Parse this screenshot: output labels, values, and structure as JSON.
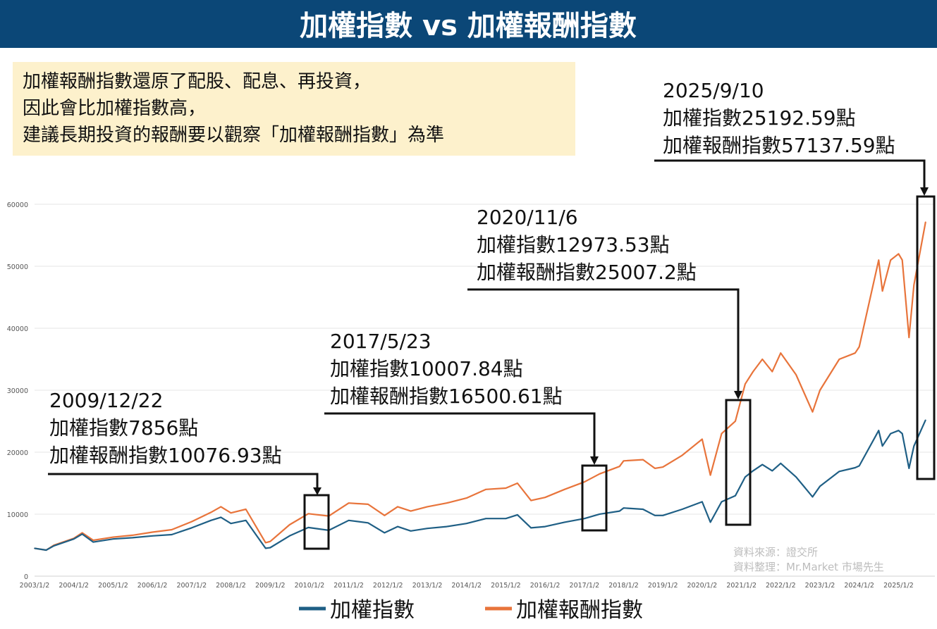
{
  "title": "加權指數 vs 加權報酬指數",
  "note": [
    "加權報酬指數還原了配股、配息、再投資，",
    "因此會比加權指數高，",
    "建議長期投資的報酬要以觀察「加權報酬指數」為準"
  ],
  "source": [
    "資料來源：證交所",
    "資料整理：Mr.Market 市場先生"
  ],
  "colors": {
    "title_bg": "#0b4777",
    "note_bg": "#fdf1cc",
    "taiex": "#1f5f85",
    "return_index": "#e8743b"
  },
  "annotations": [
    {
      "lines": [
        "2009/12/22",
        "加權指數7856點",
        "加權報酬指數10076.93點"
      ]
    },
    {
      "lines": [
        "2017/5/23",
        "加權指數10007.84點",
        "加權報酬指數16500.61點"
      ]
    },
    {
      "lines": [
        "2020/11/6",
        "加權指數12973.53點",
        "加權報酬指數25007.2點"
      ]
    },
    {
      "lines": [
        "2025/9/10",
        "加權指數25192.59點",
        "加權報酬指數57137.59點"
      ]
    }
  ],
  "chart_data": {
    "type": "line",
    "title": "加權指數 vs 加權報酬指數",
    "ylim": [
      0,
      60000
    ],
    "yticks": [
      0,
      10000,
      20000,
      30000,
      40000,
      50000,
      60000
    ],
    "xticks": [
      "2003/1/2",
      "2004/1/2",
      "2005/1/2",
      "2006/1/2",
      "2007/1/2",
      "2008/1/2",
      "2009/1/2",
      "2010/1/2",
      "2011/1/2",
      "2012/1/2",
      "2013/1/2",
      "2014/1/2",
      "2015/1/2",
      "2016/1/2",
      "2017/1/2",
      "2018/1/2",
      "2019/1/2",
      "2020/1/2",
      "2021/1/2",
      "2022/1/2",
      "2023/1/2",
      "2024/1/2",
      "2025/1/2"
    ],
    "grid": true,
    "legend_position": "bottom",
    "x": [
      "2003-01-02",
      "2003-04-20",
      "2003-07-01",
      "2004-01-02",
      "2004-03-20",
      "2004-07-01",
      "2005-01-02",
      "2005-07-01",
      "2006-01-02",
      "2006-07-01",
      "2007-01-02",
      "2007-07-01",
      "2007-10-01",
      "2008-01-02",
      "2008-05-20",
      "2008-11-20",
      "2009-01-02",
      "2009-07-01",
      "2009-12-22",
      "2010-07-01",
      "2011-01-02",
      "2011-07-01",
      "2011-12-01",
      "2012-04-01",
      "2012-08-01",
      "2013-01-02",
      "2013-07-01",
      "2014-01-02",
      "2014-07-01",
      "2015-01-02",
      "2015-04-20",
      "2015-08-25",
      "2016-01-02",
      "2016-07-01",
      "2017-01-02",
      "2017-05-23",
      "2017-11-25",
      "2018-01-02",
      "2018-07-01",
      "2018-10-20",
      "2019-01-02",
      "2019-07-01",
      "2020-01-02",
      "2020-03-19",
      "2020-07-01",
      "2020-11-06",
      "2021-02-05",
      "2021-04-20",
      "2021-07-15",
      "2021-10-15",
      "2022-01-02",
      "2022-05-25",
      "2022-10-25",
      "2023-01-02",
      "2023-07-01",
      "2023-11-25",
      "2024-01-02",
      "2024-07-01",
      "2024-08-05",
      "2024-10-20",
      "2025-01-02",
      "2025-02-05",
      "2025-04-09",
      "2025-05-25",
      "2025-09-10"
    ],
    "series": [
      {
        "name": "加權指數",
        "values": [
          4500,
          4200,
          4900,
          6000,
          6800,
          5500,
          6000,
          6200,
          6500,
          6700,
          7800,
          9000,
          9500,
          8500,
          9000,
          4500,
          4600,
          6500,
          7856,
          7400,
          9000,
          8600,
          7000,
          8000,
          7300,
          7700,
          8000,
          8500,
          9300,
          9300,
          9900,
          7800,
          8000,
          8700,
          9300,
          10008,
          10500,
          11000,
          10800,
          9800,
          9800,
          10800,
          12000,
          8700,
          12000,
          12974,
          16000,
          17000,
          18000,
          17000,
          18200,
          16000,
          12800,
          14500,
          16900,
          17500,
          17800,
          23500,
          21000,
          23000,
          23500,
          23000,
          17400,
          21000,
          25193
        ]
      },
      {
        "name": "加權報酬指數",
        "values": [
          4500,
          4200,
          5000,
          6100,
          7000,
          5800,
          6300,
          6600,
          7100,
          7500,
          8800,
          10300,
          11200,
          10200,
          10800,
          5400,
          5600,
          8300,
          10077,
          9700,
          11800,
          11600,
          9800,
          11200,
          10500,
          11200,
          11800,
          12600,
          14000,
          14200,
          15000,
          12200,
          12700,
          14000,
          15200,
          16501,
          17700,
          18600,
          18800,
          17400,
          17600,
          19500,
          22100,
          16300,
          23000,
          25007,
          31000,
          33000,
          35000,
          33000,
          36000,
          32500,
          26500,
          30000,
          35000,
          36000,
          37000,
          51000,
          46000,
          51000,
          52000,
          51000,
          38500,
          47000,
          57138
        ]
      }
    ]
  }
}
